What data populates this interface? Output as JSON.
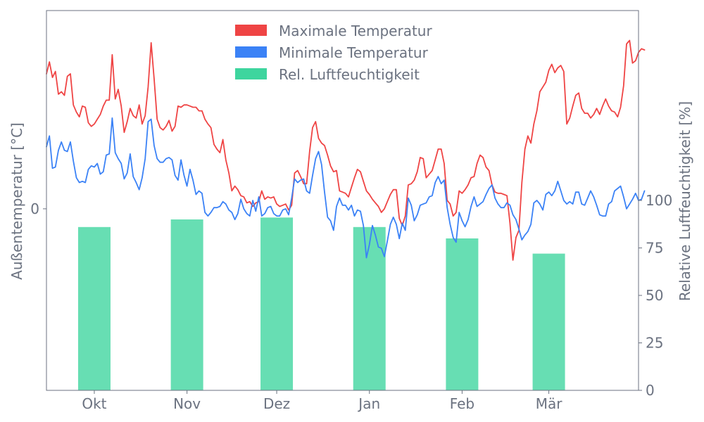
{
  "chart_data": {
    "type": "bar+line",
    "title": "",
    "ylabel_left": "Außentemperatur [°C]",
    "ylabel_right": "Relative Luftfeuchtigkeit [%]",
    "y_left_ticks": [
      {
        "value": 0,
        "label": "0"
      }
    ],
    "y_right_ticks": [
      0,
      25,
      50,
      75,
      100
    ],
    "y_left_range": [
      -15.2,
      16.6
    ],
    "y_right_range": [
      0,
      200
    ],
    "x_range": [
      "2023-09-15",
      "2024-03-31"
    ],
    "x_ticks": [
      {
        "date": "2023-10-01",
        "label": "Okt"
      },
      {
        "date": "2023-11-01",
        "label": "Nov"
      },
      {
        "date": "2023-12-01",
        "label": "Dez"
      },
      {
        "date": "2024-01-01",
        "label": "Jan"
      },
      {
        "date": "2024-02-01",
        "label": "Feb"
      },
      {
        "date": "2024-03-01",
        "label": "Mär"
      }
    ],
    "legend_position": "top-center",
    "colors": {
      "max": "#ef4444",
      "min": "#3b82f6",
      "humidity": "#34d399"
    },
    "bars": {
      "name": "Rel. Luftfeuchtigkeit",
      "categories": [
        "2023-10-01",
        "2023-11-01",
        "2023-12-01",
        "2024-01-01",
        "2024-02-01",
        "2024-03-01"
      ],
      "values": [
        86,
        90,
        91,
        86,
        80,
        72
      ]
    },
    "series": [
      {
        "name": "Maximale Temperatur",
        "x_start": "2023-09-15",
        "step_days": 1,
        "values": [
          11.3,
          12.3,
          11.0,
          11.5,
          9.6,
          9.8,
          9.5,
          11.1,
          11.3,
          8.7,
          8.1,
          7.7,
          8.6,
          8.5,
          7.2,
          6.9,
          7.1,
          7.5,
          7.9,
          8.6,
          9.1,
          9.1,
          12.9,
          9.2,
          10.0,
          8.6,
          6.4,
          7.3,
          8.4,
          7.8,
          7.6,
          8.7,
          7.1,
          7.8,
          10.2,
          13.9,
          10.9,
          7.5,
          6.8,
          6.6,
          6.9,
          7.4,
          6.5,
          6.9,
          8.6,
          8.5,
          8.7,
          8.7,
          8.6,
          8.5,
          8.5,
          8.2,
          8.2,
          7.5,
          7.1,
          6.8,
          5.4,
          5.0,
          4.7,
          5.8,
          4.1,
          3.0,
          1.5,
          1.9,
          1.6,
          1.1,
          1.0,
          0.5,
          0.6,
          0.2,
          0.5,
          0.6,
          1.5,
          0.8,
          1.0,
          0.9,
          1.0,
          0.4,
          0.2,
          0.3,
          0.4,
          -0.1,
          0.3,
          3.0,
          3.2,
          2.7,
          2.1,
          2.1,
          4.8,
          6.8,
          7.3,
          5.9,
          5.5,
          5.3,
          4.5,
          3.6,
          3.1,
          3.2,
          1.5,
          1.4,
          1.3,
          1.0,
          1.8,
          2.6,
          3.3,
          3.1,
          2.3,
          1.5,
          1.2,
          0.8,
          0.5,
          0.2,
          -0.3,
          0.0,
          0.6,
          1.2,
          1.6,
          1.6,
          -0.8,
          -1.4,
          -0.6,
          2.0,
          2.1,
          2.4,
          3.1,
          4.3,
          4.2,
          2.6,
          2.9,
          3.2,
          4.1,
          5.0,
          5.0,
          3.8,
          0.7,
          0.4,
          -0.6,
          -0.3,
          1.5,
          1.3,
          1.6,
          2.0,
          2.6,
          2.7,
          3.8,
          4.5,
          4.3,
          3.5,
          3.2,
          2.0,
          1.4,
          1.3,
          1.3,
          1.2,
          1.1,
          -1.2,
          -4.3,
          -2.4,
          -1.8,
          2.2,
          5.0,
          6.1,
          5.5,
          7.1,
          8.2,
          9.8,
          10.2,
          10.6,
          11.6,
          12.1,
          11.4,
          11.8,
          12.0,
          11.5,
          7.1,
          7.6,
          8.6,
          9.5,
          9.7,
          8.4,
          8.0,
          8.0,
          7.6,
          7.9,
          8.4,
          7.9,
          8.6,
          9.2,
          8.6,
          8.2,
          8.1,
          7.7,
          8.5,
          10.3,
          13.8,
          14.1,
          12.2,
          12.4,
          13.1,
          13.4,
          13.3
        ]
      },
      {
        "name": "Minimale Temperatur",
        "x_start": "2023-09-15",
        "step_days": 1,
        "values": [
          5.2,
          6.1,
          3.4,
          3.5,
          4.9,
          5.6,
          4.9,
          4.8,
          5.6,
          4.0,
          2.6,
          2.2,
          2.3,
          2.2,
          3.3,
          3.6,
          3.5,
          3.8,
          2.9,
          3.1,
          4.5,
          4.6,
          7.6,
          4.7,
          4.2,
          3.8,
          2.5,
          3.0,
          4.6,
          2.7,
          2.2,
          1.6,
          2.6,
          4.2,
          7.3,
          7.5,
          5.3,
          4.2,
          3.9,
          3.9,
          4.2,
          4.3,
          4.1,
          2.8,
          2.4,
          4.1,
          2.8,
          1.9,
          3.3,
          2.4,
          1.2,
          1.5,
          1.3,
          -0.3,
          -0.6,
          -0.3,
          0.1,
          0.1,
          0.2,
          0.6,
          0.4,
          -0.1,
          -0.3,
          -0.9,
          -0.4,
          0.8,
          0.0,
          -0.4,
          -0.6,
          0.7,
          -0.2,
          1.0,
          -0.6,
          -0.4,
          0.1,
          0.2,
          -0.4,
          -0.6,
          -0.6,
          -0.1,
          0.0,
          -0.5,
          0.9,
          2.5,
          2.2,
          2.4,
          2.5,
          1.5,
          1.3,
          2.8,
          4.2,
          4.8,
          3.7,
          1.4,
          -0.7,
          -1.0,
          -1.8,
          0.2,
          0.9,
          0.3,
          0.3,
          -0.1,
          0.3,
          -0.6,
          -0.1,
          -0.2,
          -1.4,
          -4.1,
          -3.0,
          -1.4,
          -2.2,
          -3.2,
          -3.3,
          -4.0,
          -2.7,
          -1.3,
          -0.7,
          -1.3,
          -2.5,
          -1.2,
          -1.8,
          0.9,
          0.3,
          -1.0,
          -0.5,
          0.3,
          0.4,
          0.5,
          1.0,
          1.1,
          2.2,
          2.7,
          2.1,
          2.4,
          0.1,
          -1.3,
          -2.4,
          -2.8,
          -0.3,
          -1.0,
          -1.5,
          -0.9,
          0.2,
          1.0,
          0.2,
          0.4,
          0.6,
          1.2,
          1.7,
          2.0,
          0.9,
          0.4,
          0.1,
          0.1,
          0.5,
          0.3,
          -0.5,
          -0.9,
          -1.7,
          -2.6,
          -2.2,
          -1.9,
          -1.3,
          0.5,
          0.7,
          0.4,
          -0.1,
          1.2,
          1.4,
          1.1,
          1.5,
          2.3,
          1.5,
          0.7,
          0.4,
          0.6,
          0.4,
          1.4,
          1.4,
          0.4,
          0.3,
          0.9,
          1.5,
          1.0,
          0.3,
          -0.5,
          -0.6,
          -0.6,
          0.4,
          0.6,
          1.5,
          1.7,
          1.9,
          1.0,
          0.0,
          0.4,
          0.8,
          1.3,
          0.7,
          0.8,
          1.5
        ]
      }
    ]
  }
}
